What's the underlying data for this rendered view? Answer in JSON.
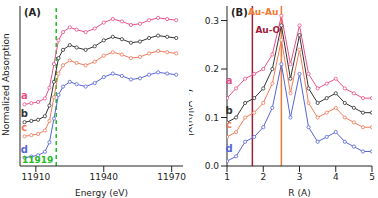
{
  "chart_data": [
    {
      "type": "line",
      "title": "(A)",
      "x_label": "Energy (eV)",
      "y_label": "Normalized Absorption",
      "x": [
        11905,
        11908,
        11911,
        11914,
        11916,
        11918,
        11920,
        11922,
        11925,
        11928,
        11932,
        11936,
        11940,
        11944,
        11948,
        11952,
        11956,
        11960,
        11964,
        11968,
        11972
      ],
      "series": [
        {
          "name": "a",
          "color": "#e8508a",
          "marker": "circle",
          "values": [
            0.47,
            0.48,
            0.49,
            0.52,
            0.61,
            0.81,
            1.01,
            1.08,
            1.12,
            1.1,
            1.08,
            1.11,
            1.16,
            1.19,
            1.17,
            1.14,
            1.15,
            1.18,
            1.2,
            1.19,
            1.18
          ]
        },
        {
          "name": "b",
          "color": "#333333",
          "marker": "circle",
          "values": [
            0.32,
            0.33,
            0.34,
            0.37,
            0.46,
            0.66,
            0.86,
            0.93,
            0.97,
            0.95,
            0.93,
            0.96,
            1.01,
            1.04,
            1.02,
            0.99,
            1.0,
            1.03,
            1.05,
            1.04,
            1.03
          ]
        },
        {
          "name": "c",
          "color": "#f07a5a",
          "marker": "circle",
          "values": [
            0.2,
            0.21,
            0.22,
            0.25,
            0.33,
            0.53,
            0.73,
            0.8,
            0.84,
            0.82,
            0.8,
            0.83,
            0.88,
            0.91,
            0.89,
            0.86,
            0.87,
            0.9,
            0.92,
            0.91,
            0.9
          ]
        },
        {
          "name": "d",
          "color": "#5566d6",
          "marker": "circle",
          "values": [
            0.02,
            0.03,
            0.04,
            0.07,
            0.15,
            0.35,
            0.55,
            0.62,
            0.66,
            0.64,
            0.62,
            0.65,
            0.7,
            0.73,
            0.71,
            0.68,
            0.69,
            0.72,
            0.74,
            0.73,
            0.72
          ]
        }
      ],
      "xlim": [
        11903,
        11975
      ],
      "xticks": [
        11910,
        11940,
        11970
      ],
      "ylim": [
        -0.05,
        1.3
      ],
      "tick_labels": "x",
      "reference_lines": [
        {
          "x": 11919,
          "label": "11919",
          "color": "#22bb22",
          "line_style": "dashed"
        }
      ]
    },
    {
      "type": "line",
      "title": "(B)",
      "x_label": "R (A)",
      "y_label": "|X(R)|(A⁻²)",
      "x": [
        1,
        1.25,
        1.5,
        1.75,
        2,
        2.25,
        2.5,
        2.75,
        3,
        3.25,
        3.5,
        3.75,
        4,
        4.25,
        4.5,
        4.75,
        5
      ],
      "series": [
        {
          "name": "a",
          "color": "#e8508a",
          "marker": "circle",
          "values": [
            0.14,
            0.16,
            0.18,
            0.19,
            0.2,
            0.23,
            0.31,
            0.21,
            0.29,
            0.19,
            0.16,
            0.17,
            0.18,
            0.16,
            0.15,
            0.14,
            0.14
          ]
        },
        {
          "name": "b",
          "color": "#333333",
          "marker": "circle",
          "values": [
            0.09,
            0.1,
            0.13,
            0.14,
            0.16,
            0.2,
            0.29,
            0.18,
            0.27,
            0.16,
            0.13,
            0.14,
            0.15,
            0.13,
            0.12,
            0.11,
            0.11
          ]
        },
        {
          "name": "c",
          "color": "#f07a5a",
          "marker": "circle",
          "values": [
            0.06,
            0.07,
            0.1,
            0.11,
            0.13,
            0.17,
            0.26,
            0.15,
            0.24,
            0.13,
            0.1,
            0.11,
            0.12,
            0.1,
            0.09,
            0.08,
            0.08
          ]
        },
        {
          "name": "d",
          "color": "#5566d6",
          "marker": "circle",
          "values": [
            0.01,
            0.02,
            0.05,
            0.06,
            0.08,
            0.12,
            0.21,
            0.1,
            0.19,
            0.08,
            0.05,
            0.06,
            0.07,
            0.05,
            0.04,
            0.03,
            0.03
          ]
        }
      ],
      "xlim": [
        1,
        5
      ],
      "xticks": [
        1,
        2,
        3,
        4,
        5
      ],
      "ylim": [
        0,
        0.33
      ],
      "yticks": [
        {
          "value": 0,
          "label": "0.0"
        },
        {
          "value": 0.1,
          "label": "0.1"
        },
        {
          "value": 0.2,
          "label": "0.2"
        },
        {
          "value": 0.3,
          "label": "0.3"
        }
      ],
      "reference_lines": [
        {
          "x": 1.7,
          "label": "Au-O",
          "color": "#a0203a",
          "line_style": "solid"
        },
        {
          "x": 2.5,
          "label": "Au-Au",
          "color": "#f07a30",
          "line_style": "solid"
        }
      ]
    }
  ]
}
